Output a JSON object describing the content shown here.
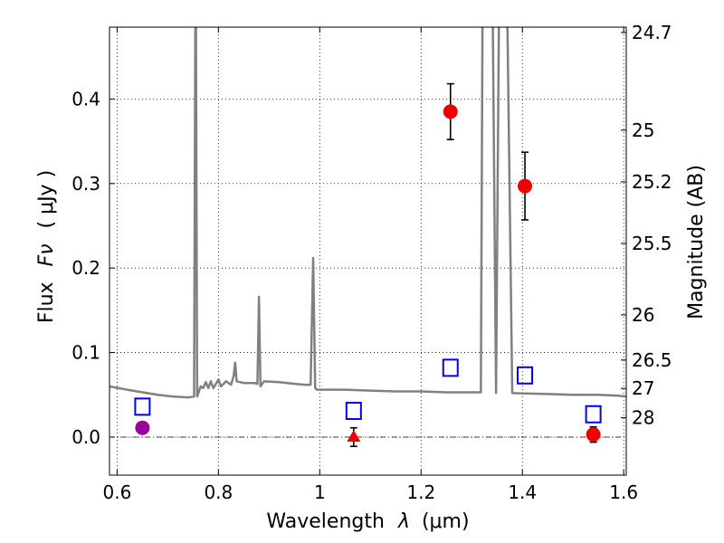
{
  "chart_data": {
    "type": "scatter",
    "xlabel_text": "Wavelength",
    "xlabel_symbol": "λ",
    "xlabel_unit": "(μm)",
    "ylabel_text": "Flux",
    "ylabel_symbol": "Fν",
    "ylabel_unit": "( μJy )",
    "y2label": "Magnitude (AB)",
    "xlim": [
      0.585,
      1.605
    ],
    "ylim": [
      -0.045,
      0.485
    ],
    "grid": true,
    "x_ticks": [
      {
        "value": 0.6,
        "label": "0.6"
      },
      {
        "value": 0.8,
        "label": "0.8"
      },
      {
        "value": 1.0,
        "label": "1"
      },
      {
        "value": 1.2,
        "label": "1.2"
      },
      {
        "value": 1.4,
        "label": "1.4"
      },
      {
        "value": 1.6,
        "label": "1.6"
      }
    ],
    "y_ticks": [
      {
        "value": 0.0,
        "label": "0.0"
      },
      {
        "value": 0.1,
        "label": "0.1"
      },
      {
        "value": 0.2,
        "label": "0.2"
      },
      {
        "value": 0.3,
        "label": "0.3"
      },
      {
        "value": 0.4,
        "label": "0.4"
      }
    ],
    "mag_ticks": [
      {
        "label": "24.7",
        "mag": 24.7
      },
      {
        "label": "25",
        "mag": 25.0
      },
      {
        "label": "25.2",
        "mag": 25.2
      },
      {
        "label": "25.5",
        "mag": 25.5
      },
      {
        "label": "26",
        "mag": 26.0
      },
      {
        "label": "26.5",
        "mag": 26.5
      },
      {
        "label": "27",
        "mag": 27.0
      },
      {
        "label": "28",
        "mag": 28.0
      }
    ],
    "template_spectrum": [
      [
        0.585,
        0.06
      ],
      [
        0.62,
        0.056
      ],
      [
        0.65,
        0.053
      ],
      [
        0.68,
        0.05
      ],
      [
        0.71,
        0.048
      ],
      [
        0.74,
        0.047
      ],
      [
        0.752,
        0.048
      ],
      [
        0.755,
        0.6
      ],
      [
        0.758,
        0.048
      ],
      [
        0.765,
        0.06
      ],
      [
        0.77,
        0.058
      ],
      [
        0.775,
        0.065
      ],
      [
        0.78,
        0.058
      ],
      [
        0.785,
        0.066
      ],
      [
        0.79,
        0.058
      ],
      [
        0.8,
        0.068
      ],
      [
        0.805,
        0.06
      ],
      [
        0.815,
        0.066
      ],
      [
        0.825,
        0.062
      ],
      [
        0.83,
        0.072
      ],
      [
        0.833,
        0.088
      ],
      [
        0.836,
        0.066
      ],
      [
        0.85,
        0.064
      ],
      [
        0.87,
        0.064
      ],
      [
        0.877,
        0.063
      ],
      [
        0.88,
        0.166
      ],
      [
        0.883,
        0.06
      ],
      [
        0.89,
        0.066
      ],
      [
        0.92,
        0.065
      ],
      [
        0.95,
        0.063
      ],
      [
        0.97,
        0.062
      ],
      [
        0.982,
        0.062
      ],
      [
        0.987,
        0.212
      ],
      [
        0.991,
        0.058
      ],
      [
        0.995,
        0.056
      ],
      [
        1.05,
        0.056
      ],
      [
        1.1,
        0.055
      ],
      [
        1.15,
        0.054
      ],
      [
        1.2,
        0.054
      ],
      [
        1.25,
        0.053
      ],
      [
        1.3,
        0.053
      ],
      [
        1.318,
        0.053
      ],
      [
        1.322,
        0.6
      ],
      [
        1.34,
        0.6
      ],
      [
        1.348,
        0.052
      ],
      [
        1.355,
        0.6
      ],
      [
        1.368,
        0.6
      ],
      [
        1.38,
        0.052
      ],
      [
        1.45,
        0.051
      ],
      [
        1.5,
        0.05
      ],
      [
        1.55,
        0.05
      ],
      [
        1.59,
        0.049
      ],
      [
        1.605,
        0.048
      ]
    ],
    "series": [
      {
        "name": "model_squares",
        "marker": "square",
        "color": "#0000ee",
        "points": [
          {
            "x": 0.65,
            "y": 0.036
          },
          {
            "x": 1.067,
            "y": 0.031
          },
          {
            "x": 1.258,
            "y": 0.082
          },
          {
            "x": 1.405,
            "y": 0.073
          },
          {
            "x": 1.54,
            "y": 0.027
          }
        ]
      },
      {
        "name": "observed_detections",
        "marker": "circle",
        "color": "#ee0000",
        "points": [
          {
            "x": 1.258,
            "y": 0.385,
            "yerr": 0.033
          },
          {
            "x": 1.405,
            "y": 0.297,
            "yerr": 0.04
          },
          {
            "x": 1.54,
            "y": 0.003,
            "yerr": 0.009
          }
        ]
      },
      {
        "name": "optical_point",
        "marker": "circle",
        "color": "#990099",
        "points": [
          {
            "x": 0.65,
            "y": 0.011,
            "yerr": 0.005
          }
        ]
      },
      {
        "name": "upper_limit",
        "marker": "triangle",
        "color": "#ee0000",
        "points": [
          {
            "x": 1.067,
            "y": 0.0,
            "yerr": 0.011
          }
        ]
      }
    ],
    "colors": {
      "spectrum": "#808080",
      "grid": "#000000",
      "errorbar": "#000000",
      "zero_line": "#000000"
    }
  }
}
